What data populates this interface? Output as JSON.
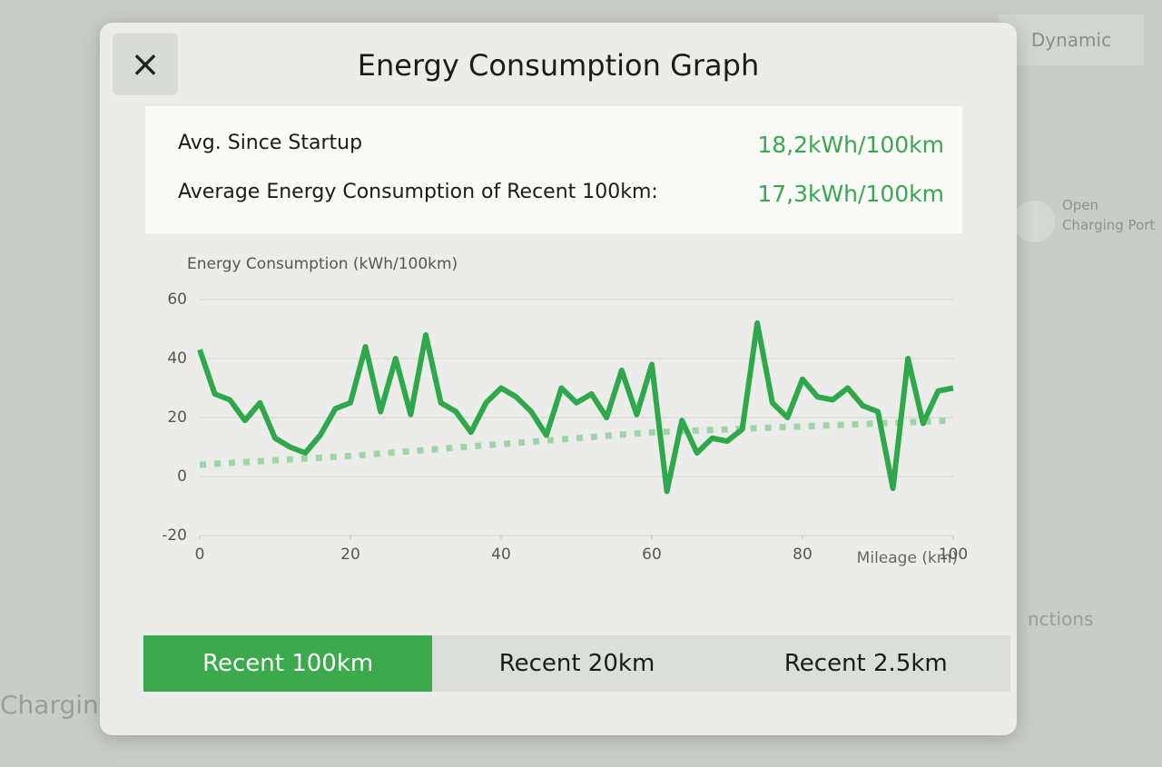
{
  "background": {
    "drive_mode": "Dynamic",
    "port_button": [
      "Open",
      "Charging Port"
    ],
    "left_label": "Charging",
    "right_label": "nctions"
  },
  "dialog": {
    "close": "×",
    "title": "Energy Consumption Graph",
    "stats": [
      {
        "label": "Avg. Since Startup",
        "value": "18,2kWh/100km"
      },
      {
        "label": "Average Energy Consumption of Recent 100km:",
        "value": "17,3kWh/100km"
      }
    ],
    "tabs": [
      "Recent 100km",
      "Recent 20km",
      "Recent 2.5km"
    ],
    "active_tab": 0
  },
  "chart_data": {
    "type": "line",
    "ylabel": "Energy Consumption (kWh/100km)",
    "xlabel": "Mileage (km)",
    "xlim": [
      0,
      100
    ],
    "xticks": [
      0,
      20,
      40,
      60,
      80,
      100
    ],
    "ylim": [
      -20,
      60
    ],
    "yticks": [
      -20,
      0,
      20,
      40,
      60
    ],
    "grid": true,
    "series": [
      {
        "color": "#2ea84a",
        "style": "solid",
        "x": [
          0,
          2,
          4,
          6,
          8,
          10,
          12,
          14,
          16,
          18,
          20,
          22,
          24,
          26,
          28,
          30,
          32,
          34,
          36,
          38,
          40,
          42,
          44,
          46,
          48,
          50,
          52,
          54,
          56,
          58,
          60,
          62,
          64,
          66,
          68,
          70,
          72,
          74,
          76,
          78,
          80,
          82,
          84,
          86,
          88,
          90,
          92,
          94,
          96,
          98,
          100
        ],
        "values": [
          43,
          28,
          26,
          19,
          25,
          13,
          10,
          8,
          14,
          23,
          25,
          44,
          22,
          40,
          21,
          48,
          25,
          22,
          15,
          25,
          30,
          27,
          22,
          14,
          30,
          25,
          28,
          20,
          36,
          21,
          38,
          -5,
          19,
          8,
          13,
          12,
          16,
          52,
          25,
          20,
          33,
          27,
          26,
          30,
          24,
          22,
          -4,
          40,
          18,
          29,
          30
        ]
      },
      {
        "color": "#9fd4a8",
        "style": "dotted",
        "x": [
          0,
          20,
          40,
          60,
          80,
          100
        ],
        "values": [
          4,
          7,
          11,
          15,
          17,
          19
        ]
      }
    ]
  }
}
